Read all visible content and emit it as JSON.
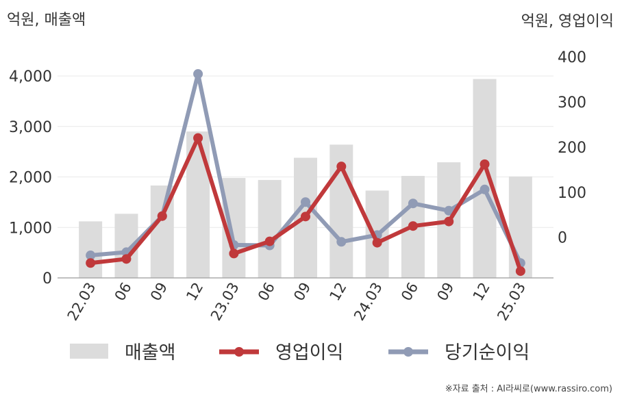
{
  "chart_data": {
    "type": "bar",
    "categories": [
      "22.03",
      "06",
      "09",
      "12",
      "23.03",
      "06",
      "09",
      "12",
      "24.03",
      "06",
      "09",
      "12",
      "25.03"
    ],
    "left_axis": {
      "unit_label": "억원, 매출액",
      "ticks": [
        "4,000",
        "3,000",
        "2,000",
        "1,000",
        "0"
      ],
      "tick_values": [
        4000,
        3000,
        2000,
        1000,
        0
      ],
      "ylim": [
        0,
        4000
      ]
    },
    "right_axis": {
      "unit_label": "억원, 영업이익",
      "ticks": [
        "400",
        "300",
        "200",
        "100",
        "0"
      ],
      "tick_values": [
        400,
        300,
        200,
        100,
        0
      ],
      "ylim": [
        -90,
        400
      ]
    },
    "series": [
      {
        "name": "매출액",
        "kind": "bar",
        "axis": "left",
        "color": "#dcdcdc",
        "values": [
          1120,
          1270,
          1830,
          2900,
          1980,
          1940,
          2380,
          2640,
          1730,
          2020,
          2290,
          3940,
          2010
        ]
      },
      {
        "name": "영업이익",
        "kind": "line",
        "axis": "right",
        "color": "#c0393b",
        "values": [
          -57,
          -48,
          47,
          220,
          -36,
          -9,
          46,
          157,
          -12,
          25,
          35,
          162,
          -75
        ]
      },
      {
        "name": "당기순이익",
        "kind": "line",
        "axis": "right",
        "color": "#909bb5",
        "values": [
          -40,
          -33,
          47,
          362,
          -17,
          -18,
          78,
          -10,
          5,
          75,
          59,
          106,
          -57
        ]
      }
    ],
    "legend": {
      "placement": "bottom"
    },
    "grid": true
  },
  "source_note": "※자료 출처 : AI라씨로(www.rassiro.com)"
}
